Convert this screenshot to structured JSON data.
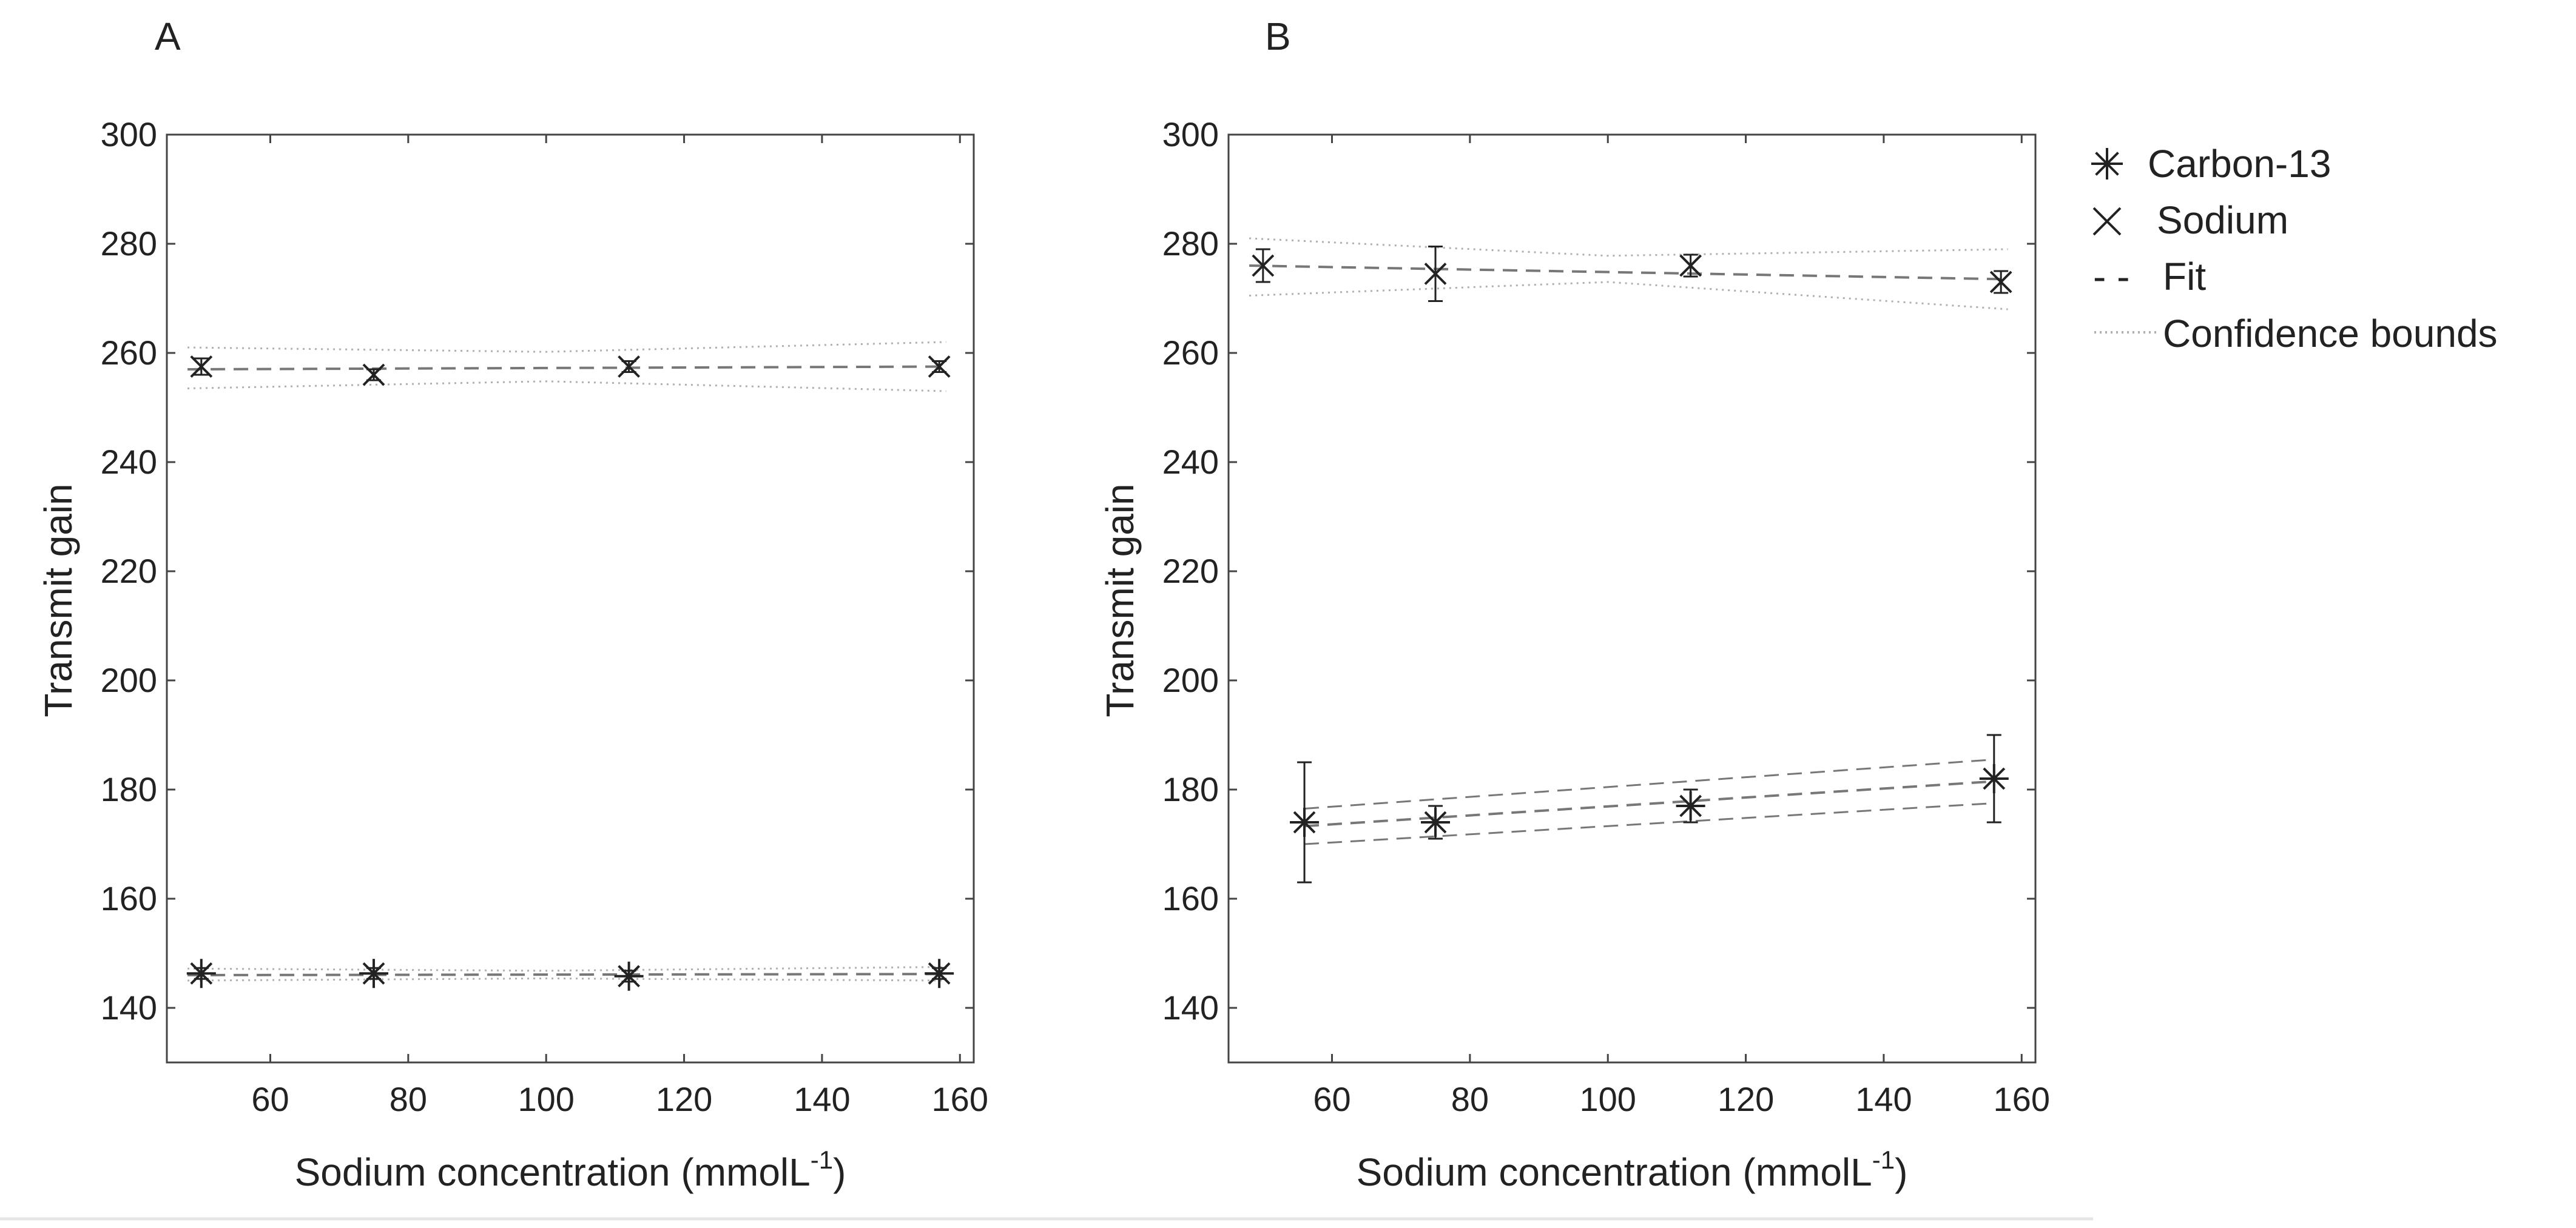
{
  "chart_data": [
    {
      "type": "scatter",
      "panel_label": "A",
      "xlabel": "Sodium concentration (mmolL",
      "xlabel_sup": "-1",
      "xlabel_close": ")",
      "ylabel": "Transmit gain",
      "xlim": [
        45,
        162
      ],
      "ylim": [
        130,
        300
      ],
      "xticks": [
        60,
        80,
        100,
        120,
        140,
        160
      ],
      "yticks": [
        140,
        160,
        180,
        200,
        220,
        240,
        260,
        280,
        300
      ],
      "grid": false,
      "series": [
        {
          "name": "Sodium",
          "marker": "x",
          "points": [
            {
              "x": 50,
              "y": 257.5,
              "err": 1.5
            },
            {
              "x": 75,
              "y": 256,
              "err": 1
            },
            {
              "x": 112,
              "y": 257.5,
              "err": 1
            },
            {
              "x": 157,
              "y": 257.5,
              "err": 1
            }
          ],
          "fit": {
            "x": [
              48,
              158
            ],
            "y": [
              257,
              257.5
            ]
          },
          "bounds_lower": {
            "x": [
              48,
              100,
              158
            ],
            "y": [
              253.5,
              254.8,
              253
            ]
          },
          "bounds_upper": {
            "x": [
              48,
              100,
              158
            ],
            "y": [
              261,
              260.2,
              262
            ]
          }
        },
        {
          "name": "Carbon-13",
          "marker": "star",
          "points": [
            {
              "x": 50,
              "y": 146.3,
              "err": 1
            },
            {
              "x": 75,
              "y": 146.3,
              "err": 1
            },
            {
              "x": 112,
              "y": 145.8,
              "err": 1
            },
            {
              "x": 157,
              "y": 146.3,
              "err": 1
            }
          ],
          "fit": {
            "x": [
              48,
              158
            ],
            "y": [
              146,
              146.2
            ]
          },
          "bounds_lower": {
            "x": [
              48,
              100,
              158
            ],
            "y": [
              145,
              145.4,
              145
            ]
          },
          "bounds_upper": {
            "x": [
              48,
              100,
              158
            ],
            "y": [
              147.2,
              146.8,
              147.5
            ]
          }
        }
      ]
    },
    {
      "type": "scatter",
      "panel_label": "B",
      "xlabel": "Sodium concentration (mmolL",
      "xlabel_sup": "-1",
      "xlabel_close": ")",
      "ylabel": "Transmit gain",
      "xlim": [
        45,
        162
      ],
      "ylim": [
        130,
        300
      ],
      "xticks": [
        60,
        80,
        100,
        120,
        140,
        160
      ],
      "yticks": [
        140,
        160,
        180,
        200,
        220,
        240,
        260,
        280,
        300
      ],
      "grid": false,
      "series": [
        {
          "name": "Sodium",
          "marker": "x",
          "points": [
            {
              "x": 50,
              "y": 276,
              "err": 3
            },
            {
              "x": 75,
              "y": 274.5,
              "err": 5
            },
            {
              "x": 112,
              "y": 276,
              "err": 2
            },
            {
              "x": 157,
              "y": 273,
              "err": 2
            }
          ],
          "fit": {
            "x": [
              48,
              158
            ],
            "y": [
              276,
              273.5
            ]
          },
          "bounds_lower": {
            "x": [
              48,
              100,
              158
            ],
            "y": [
              270.5,
              273,
              268
            ]
          },
          "bounds_upper": {
            "x": [
              48,
              100,
              158
            ],
            "y": [
              281,
              277.8,
              279
            ]
          }
        },
        {
          "name": "Carbon-13",
          "marker": "star",
          "points": [
            {
              "x": 56,
              "y": 174,
              "err": 11
            },
            {
              "x": 75,
              "y": 174,
              "err": 3
            },
            {
              "x": 112,
              "y": 177,
              "err": 3
            },
            {
              "x": 156,
              "y": 182,
              "err": 8
            }
          ],
          "fit": {
            "x": [
              56,
              156
            ],
            "y": [
              173.3,
              181.5
            ]
          },
          "bounds_lower": {
            "x": [
              56,
              156
            ],
            "y": [
              170,
              177.5
            ]
          },
          "bounds_upper": {
            "x": [
              56,
              156
            ],
            "y": [
              176.5,
              185.5
            ]
          }
        }
      ]
    }
  ],
  "legend": {
    "position": "right",
    "items": [
      {
        "label": "Carbon-13",
        "symbol": "star"
      },
      {
        "label": "Sodium",
        "symbol": "x"
      },
      {
        "label": "Fit",
        "symbol": "dashed",
        "prefix": "- -"
      },
      {
        "label": "Confidence bounds",
        "symbol": "dotted"
      }
    ]
  },
  "colors": {
    "marker": "#222222",
    "fit": "#777777",
    "bounds": "#b0b0b0",
    "axis": "#444444"
  }
}
